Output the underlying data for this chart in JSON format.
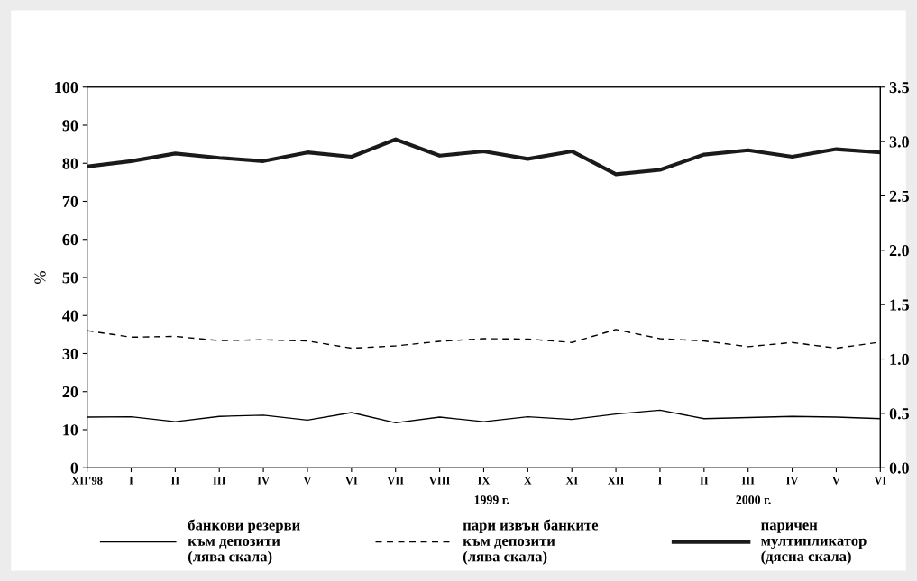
{
  "chart_data": {
    "type": "line",
    "categories": [
      "XII'98",
      "I",
      "II",
      "III",
      "IV",
      "V",
      "VI",
      "VII",
      "VIII",
      "IX",
      "X",
      "XI",
      "XII",
      "I",
      "II",
      "III",
      "IV",
      "V",
      "VI"
    ],
    "ylabel": "%",
    "ylim": [
      0,
      100
    ],
    "yticks": [
      0,
      10,
      20,
      30,
      40,
      50,
      60,
      70,
      80,
      90,
      100
    ],
    "y2lim": [
      0,
      3.5
    ],
    "y2ticks": [
      {
        "value": 0,
        "label": "0.0"
      },
      {
        "value": 0.5,
        "label": "0.5"
      },
      {
        "value": 1,
        "label": "1.0"
      },
      {
        "value": 1.5,
        "label": "1.5"
      },
      {
        "value": 2,
        "label": "2.0"
      },
      {
        "value": 2.5,
        "label": "2.5"
      },
      {
        "value": 3,
        "label": "3.0"
      },
      {
        "value": 3.5,
        "label": "3.5"
      }
    ],
    "series": [
      {
        "name": "банкови резерви\nкъм депозити\n(лява скала)",
        "color": "#000000",
        "line_style": "solid",
        "values": [
          13.3,
          13.4,
          12.1,
          13.5,
          13.8,
          12.5,
          14.5,
          11.8,
          13.3,
          12.1,
          13.4,
          12.7,
          14.1,
          15.1,
          12.9,
          13.2,
          13.5,
          13.3,
          12.9
        ]
      },
      {
        "name": "пари извън банките\nкъм депозити\n(лява скала)",
        "color": "#000000",
        "line_style": "dashed",
        "values": [
          36,
          34.3,
          34.5,
          33.4,
          33.6,
          33.3,
          31.4,
          32,
          33.2,
          33.9,
          33.8,
          32.9,
          36.3,
          33.9,
          33.3,
          31.8,
          32.9,
          31.4,
          33
        ]
      },
      {
        "name": "паричен\nмултипликатор\n(дясна скала)",
        "color": "#1a1a1a",
        "line_style": "solid",
        "axis": "y2",
        "values": [
          2.77,
          2.82,
          2.89,
          2.85,
          2.82,
          2.9,
          2.86,
          3.02,
          2.87,
          2.91,
          2.84,
          2.91,
          2.7,
          2.74,
          2.88,
          2.92,
          2.86,
          2.93,
          2.9
        ]
      }
    ],
    "annotations": [
      "1999 г.",
      "2000 г."
    ],
    "legend": "bottom",
    "grid": false
  }
}
